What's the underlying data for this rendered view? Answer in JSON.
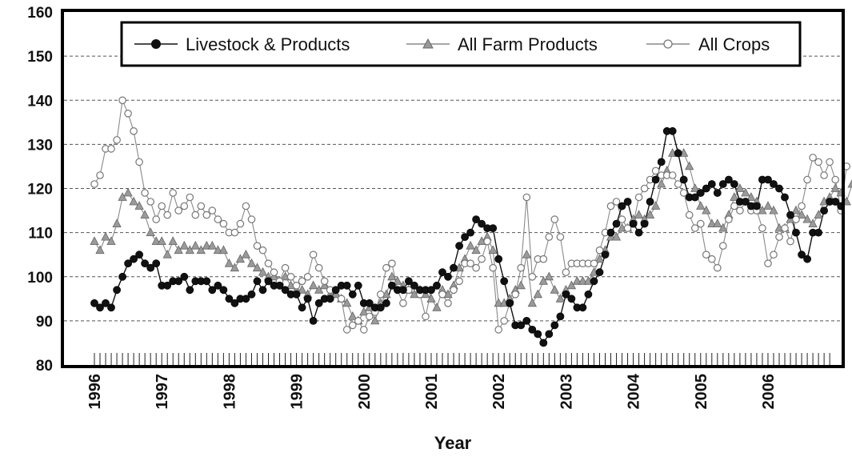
{
  "chart_data": {
    "type": "line",
    "title": "",
    "xlabel": "Year",
    "ylabel": "",
    "ylim": [
      80,
      160
    ],
    "yticks": [
      "80",
      "90",
      "100",
      "110",
      "120",
      "130",
      "140",
      "150",
      "160"
    ],
    "xlim": [
      1996,
      2007
    ],
    "xticks": [
      "1996",
      "1997",
      "1998",
      "1999",
      "2000",
      "2001",
      "2002",
      "2003",
      "2004",
      "2005",
      "2006"
    ],
    "grid": "horizontal-dashed",
    "legend_position": "top",
    "x_step": 0.08333,
    "series": [
      {
        "name": "Livestock & Products",
        "marker": "filled-circle",
        "color": "#111111",
        "values": [
          94,
          93,
          94,
          93,
          97,
          100,
          103,
          104,
          105,
          103,
          102,
          103,
          98,
          98,
          99,
          99,
          100,
          97,
          99,
          99,
          99,
          97,
          98,
          97,
          95,
          94,
          95,
          95,
          96,
          99,
          97,
          99,
          98,
          98,
          97,
          96,
          96,
          93,
          95,
          90,
          94,
          95,
          95,
          97,
          98,
          98,
          96,
          98,
          94,
          94,
          93,
          93,
          94,
          98,
          97,
          97,
          99,
          98,
          97,
          97,
          97,
          98,
          101,
          100,
          102,
          107,
          109,
          110,
          113,
          112,
          111,
          111,
          104,
          99,
          94,
          89,
          89,
          90,
          88,
          87,
          85,
          87,
          89,
          91,
          96,
          95,
          93,
          93,
          96,
          99,
          101,
          105,
          110,
          112,
          116,
          117,
          112,
          110,
          112,
          117,
          122,
          126,
          133,
          133,
          128,
          122,
          118,
          118,
          119,
          120,
          121,
          119,
          121,
          122,
          121,
          117,
          117,
          116,
          116,
          122,
          122,
          121,
          120,
          118,
          114,
          110,
          105,
          104,
          110,
          110,
          115,
          117,
          117,
          116
        ]
      },
      {
        "name": "All Farm Products",
        "marker": "triangle",
        "color": "#888888",
        "values": [
          108,
          106,
          109,
          108,
          112,
          118,
          119,
          117,
          116,
          114,
          110,
          108,
          108,
          105,
          108,
          106,
          107,
          106,
          107,
          106,
          107,
          107,
          106,
          106,
          103,
          102,
          104,
          105,
          103,
          102,
          101,
          100,
          100,
          99,
          100,
          98,
          97,
          97,
          96,
          98,
          97,
          98,
          96,
          96,
          95,
          94,
          91,
          90,
          92,
          93,
          90,
          94,
          96,
          100,
          99,
          98,
          97,
          96,
          97,
          96,
          95,
          93,
          97,
          96,
          98,
          102,
          104,
          107,
          106,
          108,
          109,
          106,
          94,
          94,
          95,
          97,
          98,
          105,
          94,
          96,
          99,
          100,
          97,
          95,
          97,
          98,
          99,
          99,
          99,
          101,
          104,
          106,
          109,
          109,
          111,
          111,
          113,
          114,
          113,
          114,
          116,
          121,
          124,
          128,
          128,
          128,
          125,
          120,
          116,
          115,
          112,
          112,
          111,
          114,
          118,
          120,
          119,
          118,
          117,
          115,
          116,
          115,
          111,
          111,
          113,
          115,
          114,
          113,
          112,
          114,
          117,
          118,
          120,
          119,
          117,
          121
        ]
      },
      {
        "name": "All Crops",
        "marker": "open-circle",
        "color": "#888888",
        "values": [
          121,
          123,
          129,
          129,
          131,
          140,
          137,
          133,
          126,
          119,
          117,
          113,
          116,
          114,
          119,
          115,
          116,
          118,
          114,
          116,
          114,
          115,
          113,
          112,
          110,
          110,
          112,
          116,
          113,
          107,
          106,
          103,
          101,
          99,
          102,
          100,
          98,
          99,
          100,
          105,
          102,
          99,
          97,
          97,
          95,
          88,
          89,
          90,
          88,
          91,
          92,
          96,
          102,
          103,
          97,
          94,
          97,
          98,
          96,
          91,
          97,
          98,
          96,
          94,
          97,
          99,
          103,
          103,
          102,
          104,
          108,
          102,
          88,
          90,
          94,
          96,
          102,
          118,
          100,
          104,
          104,
          109,
          113,
          109,
          101,
          103,
          103,
          103,
          103,
          103,
          106,
          110,
          116,
          117,
          113,
          111,
          112,
          118,
          120,
          122,
          124,
          123,
          123,
          123,
          121,
          119,
          114,
          111,
          112,
          105,
          104,
          102,
          107,
          113,
          116,
          115,
          117,
          115,
          115,
          111,
          103,
          105,
          109,
          111,
          108,
          113,
          116,
          122,
          127,
          126,
          123,
          126,
          122,
          115,
          125
        ]
      }
    ]
  }
}
